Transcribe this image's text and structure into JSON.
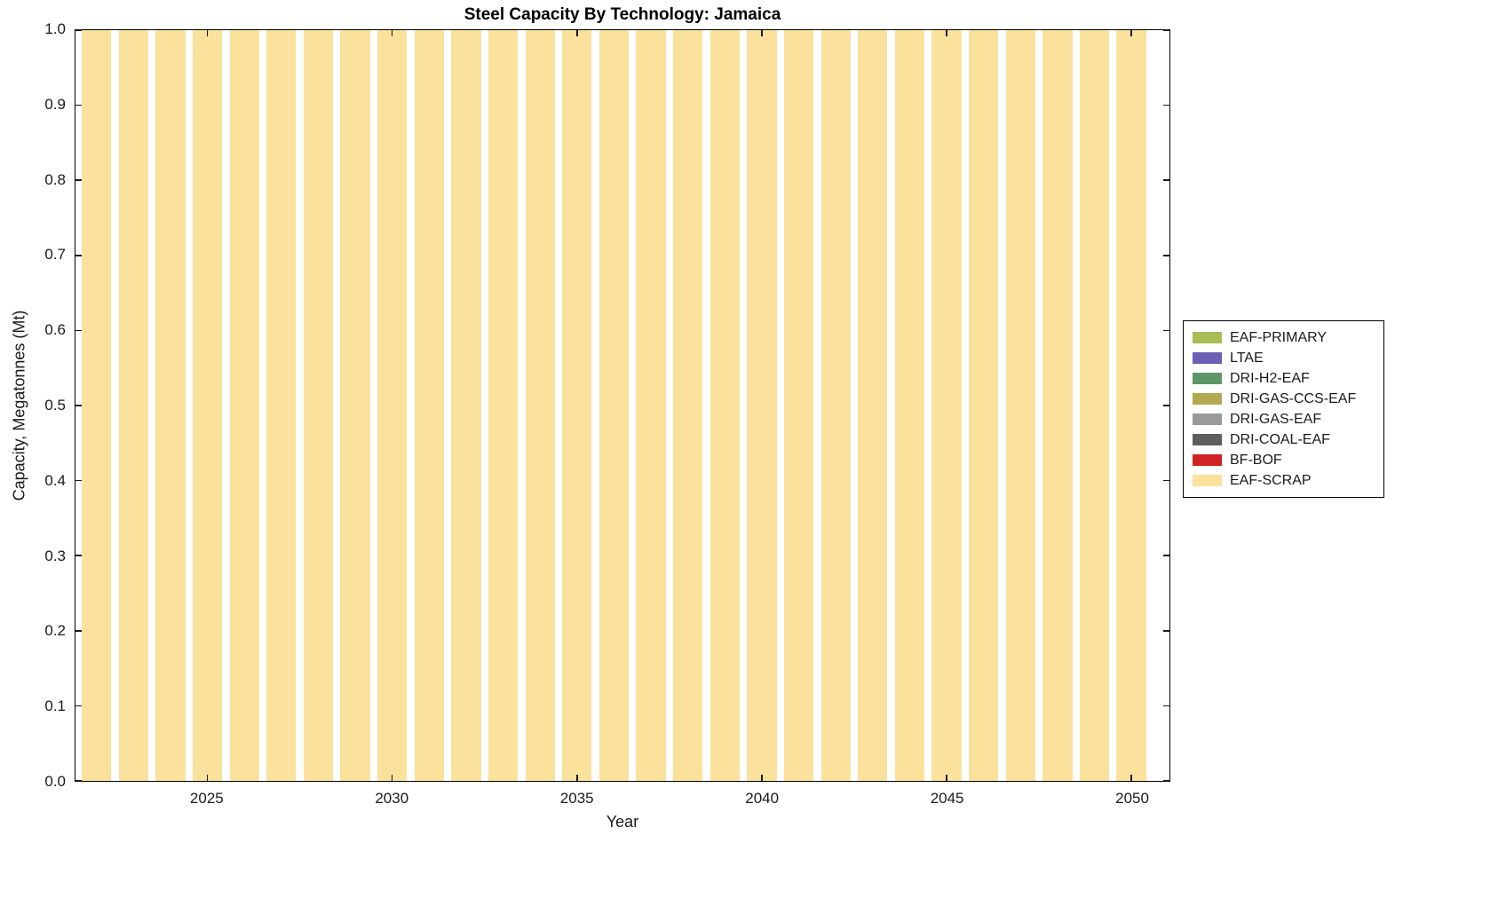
{
  "chart_data": {
    "type": "bar",
    "stacked": true,
    "title": "Steel Capacity By Technology: Jamaica",
    "xlabel": "Year",
    "ylabel": "Capacity, Megatonnes (Mt)",
    "x": [
      2022,
      2023,
      2024,
      2025,
      2026,
      2027,
      2028,
      2029,
      2030,
      2031,
      2032,
      2033,
      2034,
      2035,
      2036,
      2037,
      2038,
      2039,
      2040,
      2041,
      2042,
      2043,
      2044,
      2045,
      2046,
      2047,
      2048,
      2049,
      2050
    ],
    "series": [
      {
        "name": "EAF-PRIMARY",
        "color": "#A9BE55",
        "values": [
          0,
          0,
          0,
          0,
          0,
          0,
          0,
          0,
          0,
          0,
          0,
          0,
          0,
          0,
          0,
          0,
          0,
          0,
          0,
          0,
          0,
          0,
          0,
          0,
          0,
          0,
          0,
          0,
          0
        ]
      },
      {
        "name": "LTAE",
        "color": "#6C60B4",
        "values": [
          0,
          0,
          0,
          0,
          0,
          0,
          0,
          0,
          0,
          0,
          0,
          0,
          0,
          0,
          0,
          0,
          0,
          0,
          0,
          0,
          0,
          0,
          0,
          0,
          0,
          0,
          0,
          0,
          0
        ]
      },
      {
        "name": "DRI-H2-EAF",
        "color": "#5E9668",
        "values": [
          0,
          0,
          0,
          0,
          0,
          0,
          0,
          0,
          0,
          0,
          0,
          0,
          0,
          0,
          0,
          0,
          0,
          0,
          0,
          0,
          0,
          0,
          0,
          0,
          0,
          0,
          0,
          0,
          0
        ]
      },
      {
        "name": "DRI-GAS-CCS-EAF",
        "color": "#B1AA52",
        "values": [
          0,
          0,
          0,
          0,
          0,
          0,
          0,
          0,
          0,
          0,
          0,
          0,
          0,
          0,
          0,
          0,
          0,
          0,
          0,
          0,
          0,
          0,
          0,
          0,
          0,
          0,
          0,
          0,
          0
        ]
      },
      {
        "name": "DRI-GAS-EAF",
        "color": "#9A9A9A",
        "values": [
          0,
          0,
          0,
          0,
          0,
          0,
          0,
          0,
          0,
          0,
          0,
          0,
          0,
          0,
          0,
          0,
          0,
          0,
          0,
          0,
          0,
          0,
          0,
          0,
          0,
          0,
          0,
          0,
          0
        ]
      },
      {
        "name": "DRI-COAL-EAF",
        "color": "#5E5E5E",
        "values": [
          0,
          0,
          0,
          0,
          0,
          0,
          0,
          0,
          0,
          0,
          0,
          0,
          0,
          0,
          0,
          0,
          0,
          0,
          0,
          0,
          0,
          0,
          0,
          0,
          0,
          0,
          0,
          0,
          0
        ]
      },
      {
        "name": "BF-BOF",
        "color": "#CE2423",
        "values": [
          0,
          0,
          0,
          0,
          0,
          0,
          0,
          0,
          0,
          0,
          0,
          0,
          0,
          0,
          0,
          0,
          0,
          0,
          0,
          0,
          0,
          0,
          0,
          0,
          0,
          0,
          0,
          0,
          0
        ]
      },
      {
        "name": "EAF-SCRAP",
        "color": "#FAE29C",
        "values": [
          1,
          1,
          1,
          1,
          1,
          1,
          1,
          1,
          1,
          1,
          1,
          1,
          1,
          1,
          1,
          1,
          1,
          1,
          1,
          1,
          1,
          1,
          1,
          1,
          1,
          1,
          1,
          1,
          1
        ]
      }
    ],
    "bar_width": 0.8,
    "xlim": [
      2021.43,
      2051.03
    ],
    "ylim": [
      0,
      1
    ],
    "xticks": [
      2025,
      2030,
      2035,
      2040,
      2045,
      2050
    ],
    "yticks": [
      0.0,
      0.1,
      0.2,
      0.3,
      0.4,
      0.5,
      0.6,
      0.7,
      0.8,
      0.9,
      1.0
    ],
    "ytick_decimals": 1,
    "grid": false,
    "legend_position": "right-outside",
    "plot_background": "#ffffff",
    "axis_color": "#000000"
  }
}
